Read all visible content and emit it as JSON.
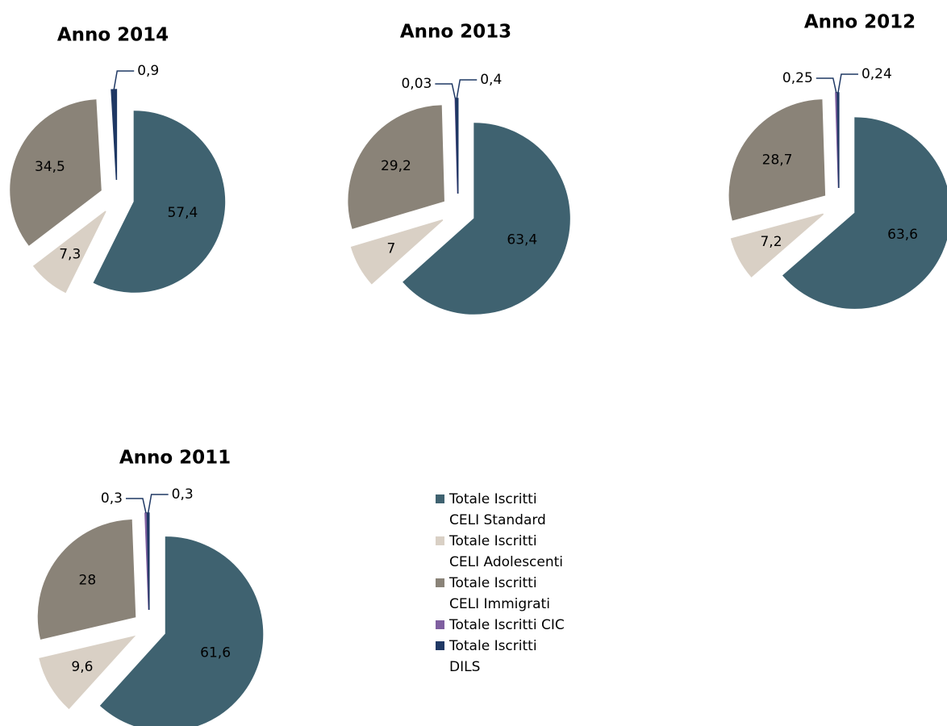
{
  "chart_data": [
    {
      "type": "pie",
      "title": "Anno 2014",
      "categories": [
        "Totale Iscritti CELI Standard",
        "Totale Iscritti CELI Adolescenti",
        "Totale Iscritti CELI Immigrati",
        "Totale Iscritti DILS"
      ],
      "values": [
        57.4,
        7.3,
        34.5,
        0.9
      ],
      "value_labels": [
        "57,4",
        "7,3",
        "34,5",
        "0,9"
      ],
      "colors": [
        "#3f6270",
        "#d9d0c5",
        "#8a8378",
        "#1f3864"
      ]
    },
    {
      "type": "pie",
      "title": "Anno 2013",
      "categories": [
        "Totale Iscritti CELI Standard",
        "Totale Iscritti CELI Adolescenti",
        "Totale Iscritti CELI Immigrati",
        "Totale Iscritti CIC",
        "Totale Iscritti DILS"
      ],
      "values": [
        63.4,
        7,
        29.2,
        0.03,
        0.4
      ],
      "value_labels": [
        "63,4",
        "7",
        "29,2",
        "0,03",
        "0,4"
      ],
      "colors": [
        "#3f6270",
        "#d9d0c5",
        "#8a8378",
        "#7f5fa0",
        "#1f3864"
      ]
    },
    {
      "type": "pie",
      "title": "Anno 2012",
      "categories": [
        "Totale Iscritti CELI Standard",
        "Totale Iscritti CELI Adolescenti",
        "Totale Iscritti CELI Immigrati",
        "Totale Iscritti CIC",
        "Totale Iscritti DILS"
      ],
      "values": [
        63.6,
        7.2,
        28.7,
        0.25,
        0.24
      ],
      "value_labels": [
        "63,6",
        "7,2",
        "28,7",
        "0,25",
        "0,24"
      ],
      "colors": [
        "#3f6270",
        "#d9d0c5",
        "#8a8378",
        "#7f5fa0",
        "#1f3864"
      ]
    },
    {
      "type": "pie",
      "title": "Anno 2011",
      "categories": [
        "Totale Iscritti CELI Standard",
        "Totale Iscritti CELI Adolescenti",
        "Totale Iscritti CELI Immigrati",
        "Totale Iscritti CIC",
        "Totale Iscritti DILS"
      ],
      "values": [
        61.6,
        9.6,
        28,
        0.3,
        0.3
      ],
      "value_labels": [
        "61,6",
        "9,6",
        "28",
        "0,3",
        "0,3"
      ],
      "colors": [
        "#3f6270",
        "#d9d0c5",
        "#8a8378",
        "#7f5fa0",
        "#1f3864"
      ],
      "legend": "right"
    }
  ]
}
